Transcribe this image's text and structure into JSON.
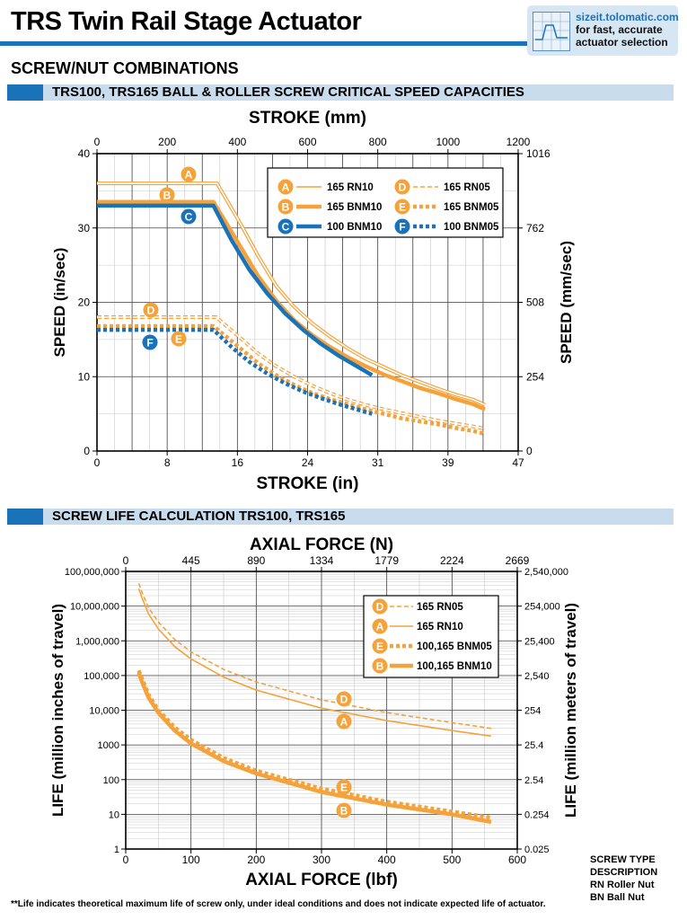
{
  "page": {
    "title": "TRS Twin Rail Stage Actuator",
    "promo_url": "sizeit.tolomatic.com",
    "promo_line2": "for fast, accurate",
    "promo_line3": "actuator selection",
    "section_title": "SCREW/NUT COMBINATIONS",
    "band1": "TRS100, TRS165 BALL & ROLLER SCREW CRITICAL SPEED CAPACITIES",
    "band2": "SCREW LIFE CALCULATION TRS100, TRS165",
    "footnote": "**Life indicates theoretical maximum life of screw only, under ideal conditions and does not indicate expected life of actuator.",
    "screw_type_title1": "SCREW TYPE",
    "screw_type_title2": "DESCRIPTION",
    "screw_type_rn": "RN  Roller Nut",
    "screw_type_bn": "BN  Ball Nut"
  },
  "colors": {
    "orange": "#f5a23a",
    "blue": "#1a72b8",
    "band": "#c9dcee"
  },
  "chart_data": [
    {
      "type": "line",
      "xlabel": "STROKE (in)",
      "x2label": "STROKE (mm)",
      "ylabel": "SPEED (in/sec)",
      "y2label": "SPEED (mm/sec)",
      "xlim": [
        0,
        47
      ],
      "ylim": [
        0,
        40
      ],
      "x_ticks": [
        0,
        8,
        16,
        24,
        31,
        39,
        47
      ],
      "x2_ticks": [
        0,
        200,
        400,
        600,
        800,
        1000,
        1200
      ],
      "y_ticks": [
        0,
        10,
        20,
        30,
        40
      ],
      "y2_ticks": [
        0,
        254,
        508,
        762,
        1016
      ],
      "grid": true,
      "legend": "top-right",
      "series": [
        {
          "letter": "A",
          "name": "165 RN10",
          "color": "#f5a23a",
          "style": "thin",
          "x": [
            0,
            13.4,
            16,
            18,
            20,
            22,
            24,
            26,
            28,
            30,
            32,
            34,
            36,
            38,
            40,
            42,
            43.3
          ],
          "y": [
            36,
            36,
            30.6,
            26.2,
            22.2,
            19.4,
            17.2,
            15.4,
            13.8,
            12.4,
            11.3,
            10.2,
            9.3,
            8.4,
            7.6,
            6.9,
            6.2
          ]
        },
        {
          "letter": "B",
          "name": "165 BNM10",
          "color": "#f5a23a",
          "style": "thick",
          "x": [
            0,
            13,
            16,
            18,
            20,
            22,
            24,
            26,
            28,
            30,
            32,
            34,
            36,
            38,
            40,
            42,
            43.3
          ],
          "y": [
            33.5,
            33.5,
            27.5,
            23.5,
            20.2,
            17.6,
            15.6,
            14,
            12.6,
            11.4,
            10.3,
            9.4,
            8.5,
            7.8,
            7,
            6.3,
            5.6
          ]
        },
        {
          "letter": "C",
          "name": "100 BNM10",
          "color": "#1a72b8",
          "style": "thick",
          "x": [
            0,
            13,
            15,
            17,
            19,
            21,
            23,
            25,
            27,
            29,
            30.7
          ],
          "y": [
            33,
            33,
            28.4,
            24.4,
            21.2,
            18.5,
            16.3,
            14.4,
            12.8,
            11.4,
            10.2
          ]
        },
        {
          "letter": "D",
          "name": "165 RN05",
          "color": "#f5a23a",
          "style": "thin-dash",
          "x": [
            0,
            13.3,
            16,
            18,
            20,
            22,
            24,
            26,
            28,
            30,
            32,
            34,
            36,
            38,
            40,
            42,
            43.3
          ],
          "y": [
            18,
            18,
            15.2,
            13.1,
            11.4,
            10,
            8.8,
            7.8,
            6.9,
            6.2,
            5.6,
            5.1,
            4.6,
            4.1,
            3.7,
            3.3,
            3
          ]
        },
        {
          "letter": "E",
          "name": "165 BNM05",
          "color": "#f5a23a",
          "style": "thick-dash",
          "x": [
            0,
            13,
            16,
            18,
            20,
            22,
            24,
            26,
            28,
            30,
            32,
            34,
            36,
            38,
            40,
            42,
            43.3
          ],
          "y": [
            16.8,
            16.8,
            13.8,
            11.8,
            10.2,
            8.9,
            7.8,
            7,
            6.3,
            5.6,
            5,
            4.4,
            4,
            3.6,
            3.1,
            2.7,
            2.3
          ]
        },
        {
          "letter": "F",
          "name": "100 BNM05",
          "color": "#1a72b8",
          "style": "thick-dash",
          "x": [
            0,
            13,
            15,
            17,
            19,
            21,
            23,
            25,
            27,
            29,
            30.7
          ],
          "y": [
            16.3,
            16.3,
            14,
            12,
            10.4,
            9.1,
            8,
            7.1,
            6.3,
            5.6,
            5
          ]
        }
      ]
    },
    {
      "type": "line",
      "xlabel": "AXIAL FORCE (lbf)",
      "x2label": "AXIAL FORCE (N)",
      "ylabel": "LIFE (million inches of travel)",
      "y2label": "LIFE (million meters of travel)",
      "xlim": [
        0,
        600
      ],
      "ylim": [
        1,
        100000000
      ],
      "yscale": "log",
      "x_ticks": [
        0,
        100,
        200,
        300,
        400,
        500,
        600
      ],
      "x2_ticks": [
        "0",
        "445",
        "890",
        "1334",
        "1779",
        "2224",
        "2669"
      ],
      "y_ticks": [
        "1",
        "10",
        "100",
        "1000",
        "10,000",
        "100,000",
        "1,000,000",
        "10,000,000",
        "100,000,000"
      ],
      "y2_ticks": [
        "0.025",
        "0.254",
        "2.54",
        "25.4",
        "254",
        "2,540",
        "25,400",
        "254,000",
        "2,540,000"
      ],
      "grid": true,
      "legend": "top-right",
      "series": [
        {
          "letter": "D",
          "name": "165 RN05",
          "color": "#f5a23a",
          "style": "thin-dash",
          "x": [
            20,
            25,
            35,
            50,
            75,
            100,
            150,
            200,
            300,
            400,
            500,
            560
          ],
          "y": [
            45000000,
            25000000,
            9000000,
            3500000,
            1100000,
            480000,
            150000,
            65000,
            20000,
            8500,
            4400,
            3000
          ]
        },
        {
          "letter": "A",
          "name": "165 RN10",
          "color": "#f5a23a",
          "style": "thin",
          "x": [
            20,
            25,
            35,
            50,
            75,
            100,
            150,
            200,
            300,
            400,
            500,
            560
          ],
          "y": [
            32000000,
            17000000,
            6000000,
            2200000,
            680000,
            300000,
            90000,
            38000,
            11500,
            5000,
            2600,
            1800
          ]
        },
        {
          "letter": "E",
          "name": "100,165 BNM05",
          "color": "#f5a23a",
          "style": "thick-dash",
          "x": [
            20,
            25,
            35,
            50,
            75,
            100,
            150,
            200,
            300,
            400,
            500,
            560
          ],
          "y": [
            140000,
            80000,
            28000,
            10000,
            3200,
            1400,
            420,
            180,
            55,
            23,
            12,
            8
          ]
        },
        {
          "letter": "B",
          "name": "100,165 BNM10",
          "color": "#f5a23a",
          "style": "thick",
          "x": [
            20,
            25,
            35,
            50,
            75,
            100,
            150,
            200,
            300,
            400,
            500,
            560
          ],
          "y": [
            120000,
            65000,
            23000,
            8500,
            2600,
            1100,
            340,
            150,
            44,
            19,
            10,
            6
          ]
        }
      ]
    }
  ]
}
